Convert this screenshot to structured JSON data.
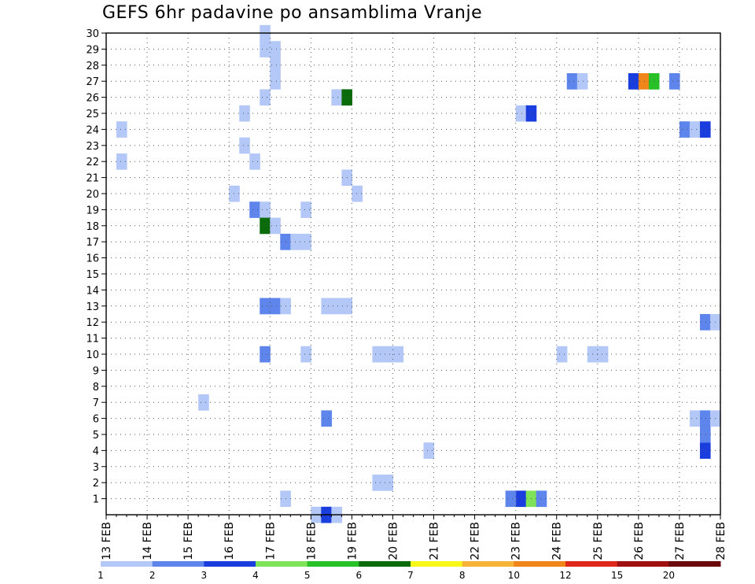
{
  "chart_data": {
    "type": "heatmap",
    "title": "GEFS 6hr padavine po ansamblima Vranje",
    "xlabel": "",
    "ylabel": "",
    "x_ticks": [
      "13 FEB",
      "14 FEB",
      "15 FEB",
      "16 FEB",
      "17 FEB",
      "18 FEB",
      "19 FEB",
      "20 FEB",
      "21 FEB",
      "22 FEB",
      "23 FEB",
      "24 FEB",
      "25 FEB",
      "26 FEB",
      "27 FEB",
      "28 FEB"
    ],
    "x_step_hours": 6,
    "y_ticks": [
      1,
      2,
      3,
      4,
      5,
      6,
      7,
      8,
      9,
      10,
      11,
      12,
      13,
      14,
      15,
      16,
      17,
      18,
      19,
      20,
      21,
      22,
      23,
      24,
      25,
      26,
      27,
      28,
      29,
      30
    ],
    "ylim": [
      0,
      30
    ],
    "grid": true,
    "colorbar": {
      "bounds": [
        1,
        2,
        3,
        4,
        5,
        6,
        7,
        8,
        10,
        12,
        15,
        20
      ],
      "colors": [
        "#b3c8f7",
        "#5d85ec",
        "#1a3ede",
        "#7fe35a",
        "#27c127",
        "#0a6b0a",
        "#f7f71a",
        "#f6b337",
        "#f0861a",
        "#e0281a",
        "#a01010",
        "#6b0a0a"
      ]
    },
    "cells": [
      {
        "day": "13 FEB",
        "step": 1,
        "members": [
          22,
          24
        ],
        "level": 1
      },
      {
        "day": "15 FEB",
        "step": 1,
        "members": [
          7
        ],
        "level": 1
      },
      {
        "day": "16 FEB",
        "step": 0,
        "members": [
          20
        ],
        "level": 1
      },
      {
        "day": "16 FEB",
        "step": 1,
        "members": [
          23,
          25
        ],
        "level": 1
      },
      {
        "day": "16 FEB",
        "step": 2,
        "members": [
          22
        ],
        "level": 1
      },
      {
        "day": "16 FEB",
        "step": 2,
        "members": [
          19
        ],
        "level": 2
      },
      {
        "day": "16 FEB",
        "step": 3,
        "members": [
          26,
          29,
          30
        ],
        "level": 1
      },
      {
        "day": "16 FEB",
        "step": 3,
        "members": [
          19
        ],
        "level": 1
      },
      {
        "day": "16 FEB",
        "step": 3,
        "members": [
          18
        ],
        "level": 6
      },
      {
        "day": "16 FEB",
        "step": 3,
        "members": [
          10,
          13
        ],
        "level": 2
      },
      {
        "day": "17 FEB",
        "step": 0,
        "members": [
          18,
          27,
          28,
          29
        ],
        "level": 1
      },
      {
        "day": "17 FEB",
        "step": 0,
        "members": [
          13
        ],
        "level": 2
      },
      {
        "day": "17 FEB",
        "step": 1,
        "members": [
          17
        ],
        "level": 2
      },
      {
        "day": "17 FEB",
        "step": 1,
        "members": [
          1,
          13
        ],
        "level": 1
      },
      {
        "day": "17 FEB",
        "step": 2,
        "members": [
          17
        ],
        "level": 1
      },
      {
        "day": "17 FEB",
        "step": 3,
        "members": [
          10,
          17,
          19
        ],
        "level": 1
      },
      {
        "day": "18 FEB",
        "step": 0,
        "members": [
          0
        ],
        "level": 1
      },
      {
        "day": "18 FEB",
        "step": 1,
        "members": [
          13
        ],
        "level": 1
      },
      {
        "day": "18 FEB",
        "step": 1,
        "members": [
          6
        ],
        "level": 2
      },
      {
        "day": "18 FEB",
        "step": 1,
        "members": [
          0
        ],
        "level": 3
      },
      {
        "day": "18 FEB",
        "step": 2,
        "members": [
          0,
          13,
          26
        ],
        "level": 1
      },
      {
        "day": "18 FEB",
        "step": 3,
        "members": [
          13,
          21
        ],
        "level": 1
      },
      {
        "day": "18 FEB",
        "step": 3,
        "members": [
          26
        ],
        "level": 6
      },
      {
        "day": "19 FEB",
        "step": 0,
        "members": [
          20
        ],
        "level": 1
      },
      {
        "day": "19 FEB",
        "step": 2,
        "members": [
          2,
          10
        ],
        "level": 1
      },
      {
        "day": "19 FEB",
        "step": 3,
        "members": [
          2,
          10
        ],
        "level": 1
      },
      {
        "day": "20 FEB",
        "step": 0,
        "members": [
          10
        ],
        "level": 1
      },
      {
        "day": "20 FEB",
        "step": 3,
        "members": [
          4
        ],
        "level": 1
      },
      {
        "day": "23 FEB",
        "step": 0,
        "members": [
          25
        ],
        "level": 1
      },
      {
        "day": "23 FEB",
        "step": 0,
        "members": [
          1
        ],
        "level": 3
      },
      {
        "day": "23 FEB",
        "step": 1,
        "members": [
          25
        ],
        "level": 3
      },
      {
        "day": "23 FEB",
        "step": 1,
        "members": [
          1
        ],
        "level": 4
      },
      {
        "day": "23 FEB",
        "step": 2,
        "members": [
          1
        ],
        "level": 2
      },
      {
        "day": "22 FEB",
        "step": 3,
        "members": [
          1
        ],
        "level": 2
      },
      {
        "day": "24 FEB",
        "step": 0,
        "members": [
          10
        ],
        "level": 1
      },
      {
        "day": "24 FEB",
        "step": 1,
        "members": [
          27
        ],
        "level": 2
      },
      {
        "day": "24 FEB",
        "step": 2,
        "members": [
          27
        ],
        "level": 1
      },
      {
        "day": "24 FEB",
        "step": 3,
        "members": [
          10
        ],
        "level": 1
      },
      {
        "day": "25 FEB",
        "step": 0,
        "members": [
          10
        ],
        "level": 1
      },
      {
        "day": "25 FEB",
        "step": 3,
        "members": [
          27
        ],
        "level": 3
      },
      {
        "day": "26 FEB",
        "step": 0,
        "members": [
          27
        ],
        "level": 9
      },
      {
        "day": "26 FEB",
        "step": 1,
        "members": [
          27
        ],
        "level": 5
      },
      {
        "day": "26 FEB",
        "step": 3,
        "members": [
          27
        ],
        "level": 2
      },
      {
        "day": "27 FEB",
        "step": 0,
        "members": [
          24
        ],
        "level": 2
      },
      {
        "day": "27 FEB",
        "step": 1,
        "members": [
          24,
          6
        ],
        "level": 1
      },
      {
        "day": "27 FEB",
        "step": 2,
        "members": [
          24,
          4
        ],
        "level": 3
      },
      {
        "day": "27 FEB",
        "step": 2,
        "members": [
          12,
          6,
          5
        ],
        "level": 2
      },
      {
        "day": "27 FEB",
        "step": 3,
        "members": [
          12,
          6
        ],
        "level": 1
      }
    ]
  }
}
